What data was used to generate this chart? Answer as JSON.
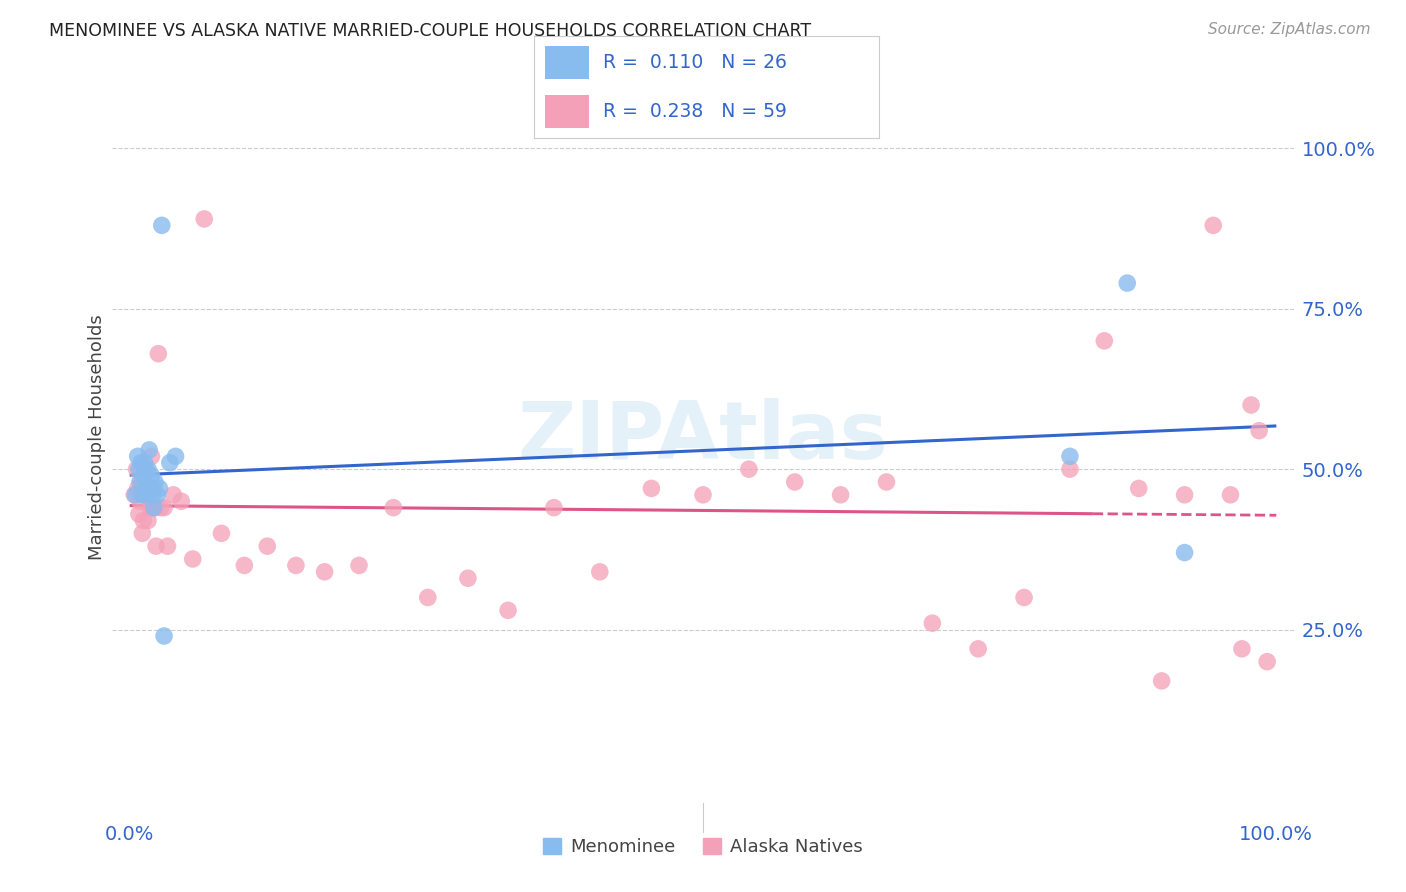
{
  "title": "MENOMINEE VS ALASKA NATIVE MARRIED-COUPLE HOUSEHOLDS CORRELATION CHART",
  "source": "Source: ZipAtlas.com",
  "ylabel": "Married-couple Households",
  "menominee_color": "#88bbee",
  "alaska_color": "#f4a0b8",
  "menominee_line_color": "#3366cc",
  "alaska_line_color": "#dd5588",
  "background_color": "#ffffff",
  "grid_color": "#cccccc",
  "watermark": "ZIPAtlas",
  "menominee_x": [
    0.005,
    0.007,
    0.008,
    0.009,
    0.01,
    0.011,
    0.012,
    0.013,
    0.014,
    0.015,
    0.016,
    0.017,
    0.018,
    0.019,
    0.02,
    0.021,
    0.022,
    0.024,
    0.026,
    0.028,
    0.03,
    0.035,
    0.04,
    0.82,
    0.87,
    0.92
  ],
  "menominee_y": [
    0.46,
    0.52,
    0.5,
    0.48,
    0.51,
    0.46,
    0.49,
    0.51,
    0.47,
    0.46,
    0.5,
    0.53,
    0.47,
    0.49,
    0.46,
    0.44,
    0.48,
    0.46,
    0.47,
    0.88,
    0.24,
    0.51,
    0.52,
    0.52,
    0.79,
    0.37
  ],
  "alaska_x": [
    0.004,
    0.006,
    0.007,
    0.008,
    0.009,
    0.01,
    0.011,
    0.012,
    0.013,
    0.014,
    0.015,
    0.016,
    0.017,
    0.018,
    0.019,
    0.02,
    0.021,
    0.022,
    0.023,
    0.025,
    0.027,
    0.03,
    0.033,
    0.038,
    0.045,
    0.055,
    0.065,
    0.08,
    0.1,
    0.12,
    0.145,
    0.17,
    0.2,
    0.23,
    0.26,
    0.295,
    0.33,
    0.37,
    0.41,
    0.455,
    0.5,
    0.54,
    0.58,
    0.62,
    0.66,
    0.7,
    0.74,
    0.78,
    0.82,
    0.85,
    0.88,
    0.9,
    0.92,
    0.945,
    0.96,
    0.97,
    0.978,
    0.985,
    0.992
  ],
  "alaska_y": [
    0.46,
    0.5,
    0.47,
    0.43,
    0.45,
    0.48,
    0.4,
    0.42,
    0.46,
    0.5,
    0.46,
    0.42,
    0.47,
    0.44,
    0.52,
    0.44,
    0.47,
    0.44,
    0.38,
    0.68,
    0.44,
    0.44,
    0.38,
    0.46,
    0.45,
    0.36,
    0.89,
    0.4,
    0.35,
    0.38,
    0.35,
    0.34,
    0.35,
    0.44,
    0.3,
    0.33,
    0.28,
    0.44,
    0.34,
    0.47,
    0.46,
    0.5,
    0.48,
    0.46,
    0.48,
    0.26,
    0.22,
    0.3,
    0.5,
    0.7,
    0.47,
    0.17,
    0.46,
    0.88,
    0.46,
    0.22,
    0.6,
    0.56,
    0.2
  ],
  "ytick_positions": [
    0.0,
    0.25,
    0.5,
    0.75,
    1.0
  ],
  "ytick_labels": [
    "",
    "25.0%",
    "50.0%",
    "75.0%",
    "100.0%"
  ]
}
